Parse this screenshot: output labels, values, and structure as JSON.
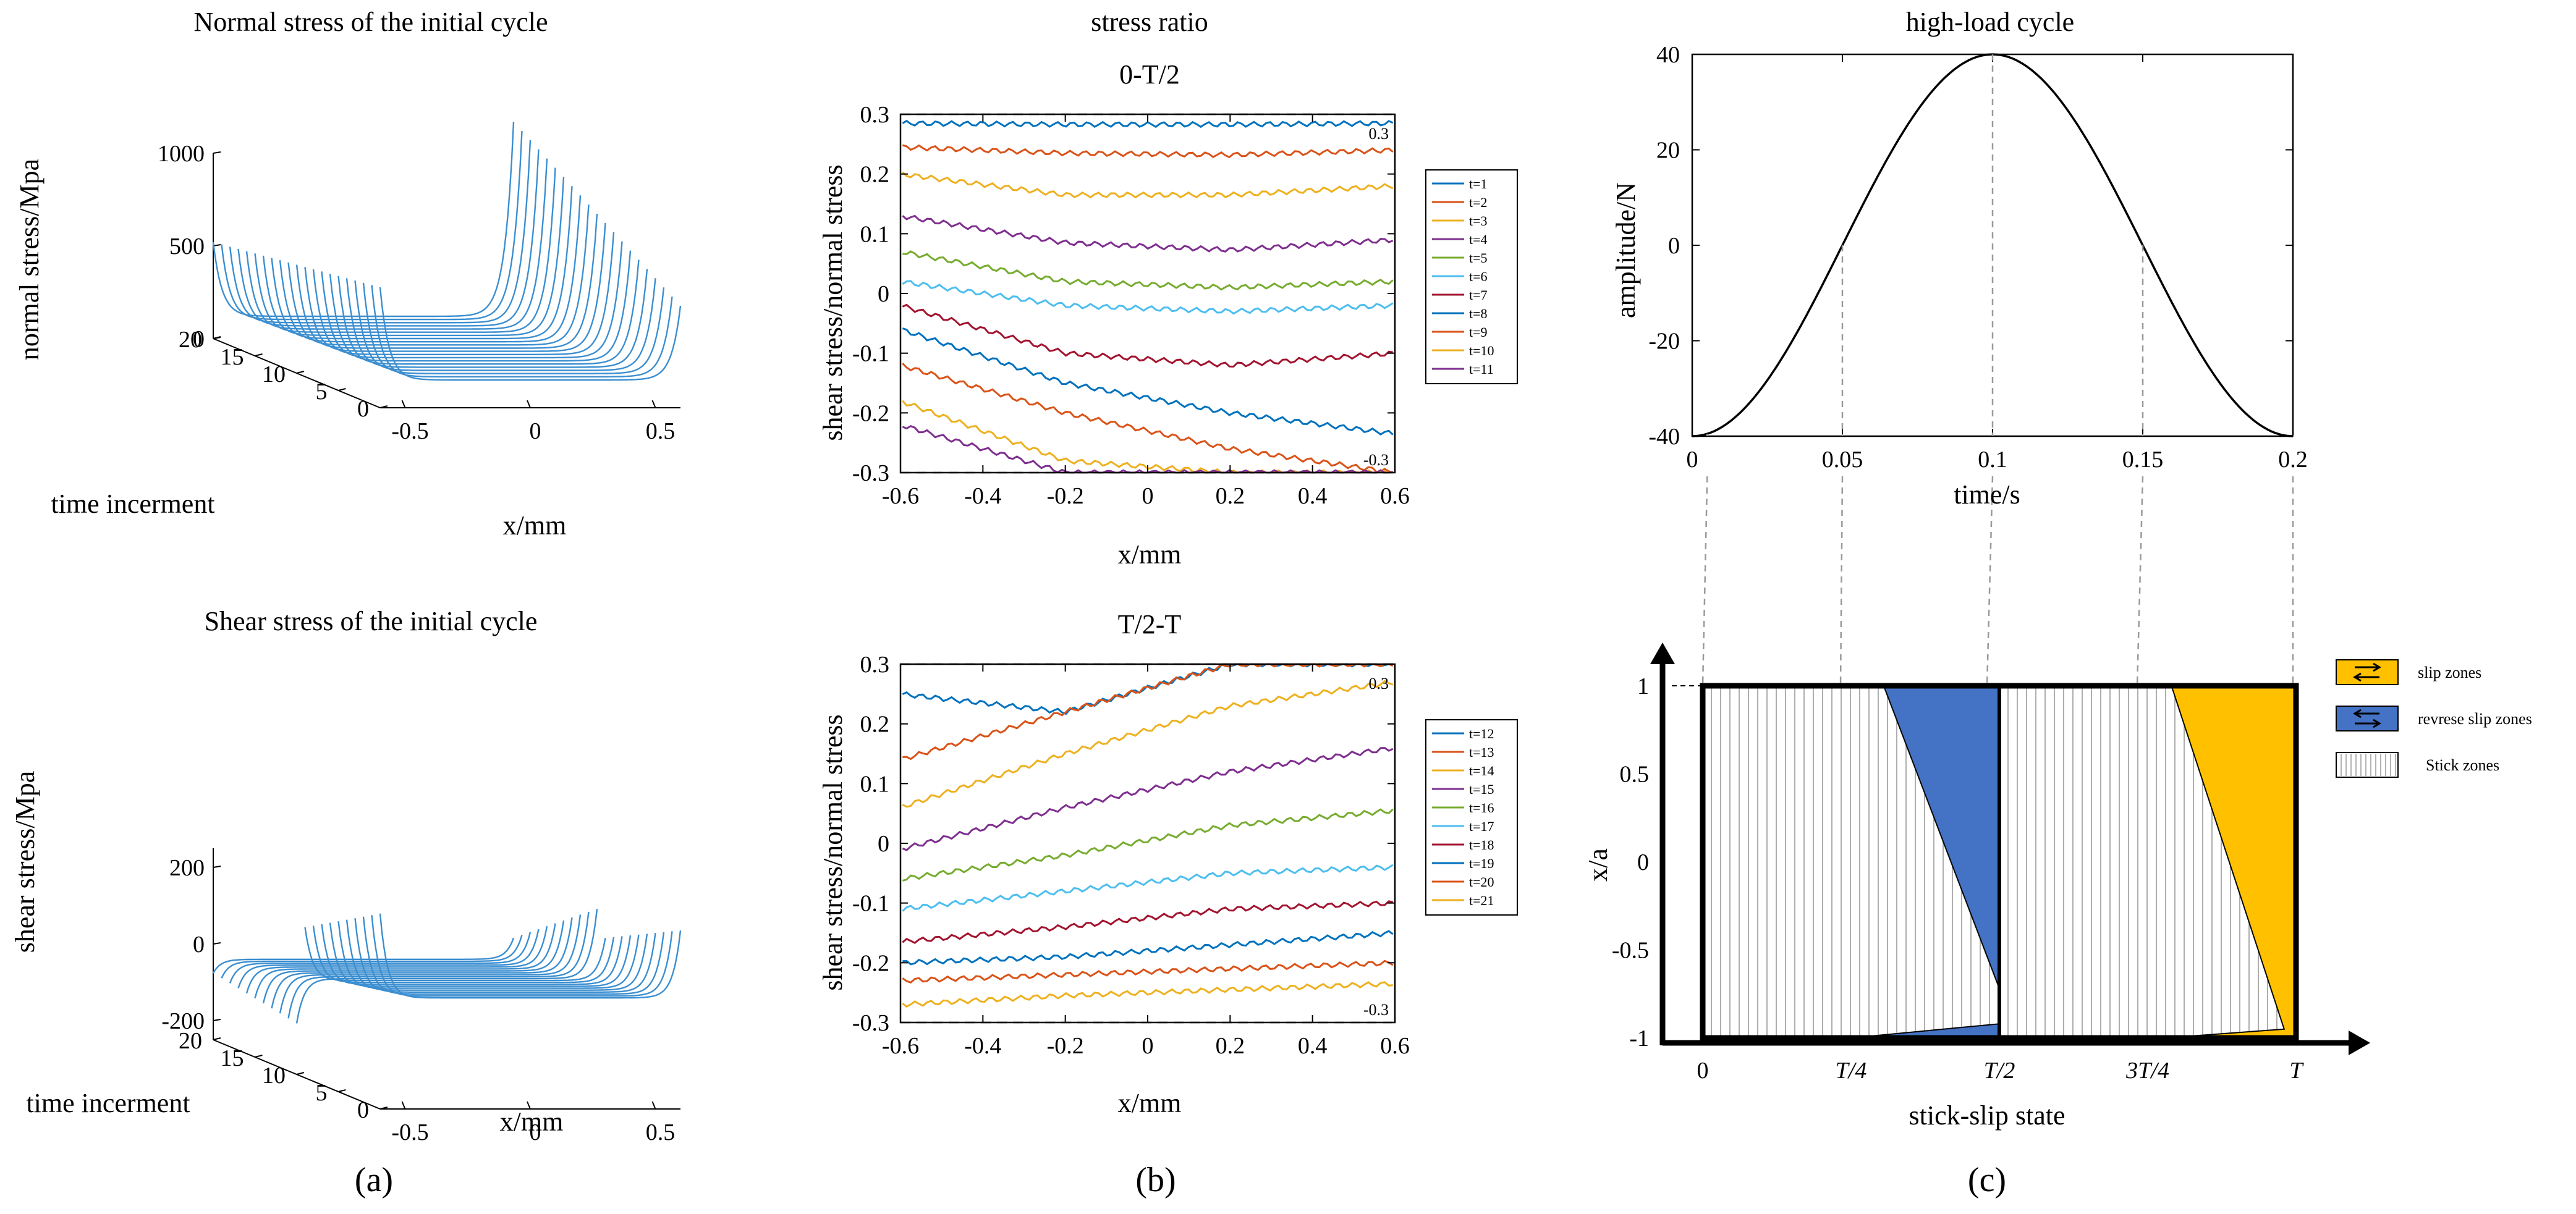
{
  "colors": {
    "ribbon": "#3b8ed0",
    "slip": "#ffc000",
    "reverse_slip": "#4472c4",
    "axis": "#000000",
    "dash": "#9a9a9a",
    "series": [
      "#0072BD",
      "#D95319",
      "#EDB120",
      "#7E2F8E",
      "#77AC30",
      "#4DBEEE",
      "#A2142F",
      "#0072BD",
      "#D95319",
      "#EDB120",
      "#7E2F8E"
    ]
  },
  "captions": {
    "a": "(a)",
    "b": "(b)",
    "c": "(c)"
  },
  "chart_data": [
    {
      "id": "normal-stress-3d",
      "type": "line",
      "title": "Normal stress of the initial cycle",
      "xlabel": "x/mm",
      "ylabel": "time incerment",
      "zlabel": "normal stress/Mpa",
      "x_ticks": [
        "-0.5",
        "0",
        "0.5"
      ],
      "y_ticks": [
        "0",
        "5",
        "10",
        "15",
        "20"
      ],
      "z_ticks": [
        "0",
        "500",
        "1000"
      ],
      "xlim": [
        -0.6,
        0.6
      ],
      "ylim": [
        0,
        20
      ],
      "zlim": [
        0,
        1000
      ],
      "series_count": 21,
      "edge_peak_left_range": [
        500,
        400
      ],
      "edge_peak_right_range": [
        400,
        1050
      ],
      "plateau_range": [
        150,
        120
      ]
    },
    {
      "id": "shear-stress-3d",
      "type": "line",
      "title": "Shear stress of the initial cycle",
      "xlabel": "x/mm",
      "ylabel": "time incerment",
      "zlabel": "shear stress/Mpa",
      "x_ticks": [
        "-0.5",
        "0",
        "0.5"
      ],
      "y_ticks": [
        "0",
        "5",
        "10",
        "15",
        "20"
      ],
      "z_ticks": [
        "-200",
        "0",
        "200"
      ],
      "xlim": [
        -0.6,
        0.6
      ],
      "ylim": [
        0,
        20
      ],
      "zlim": [
        -250,
        250
      ],
      "series_count": 21,
      "plateau_start": 40,
      "plateau_end": -40
    },
    {
      "id": "stress-ratio-0-T2",
      "type": "line",
      "section_title": "stress ratio",
      "title": "0-T/2",
      "xlabel": "x/mm",
      "ylabel": "shear stress/normal stress",
      "xlim": [
        -0.6,
        0.6
      ],
      "ylim": [
        -0.3,
        0.3
      ],
      "x_ticks": [
        "-0.6",
        "-0.4",
        "-0.2",
        "0",
        "0.2",
        "0.4",
        "0.6"
      ],
      "y_ticks": [
        "-0.3",
        "-0.2",
        "-0.1",
        "0",
        "0.1",
        "0.2",
        "0.3"
      ],
      "bound_labels": [
        "0.3",
        "-0.3"
      ],
      "series": [
        {
          "name": "t=1",
          "values": [
            0.285,
            0.283,
            0.283,
            0.285
          ]
        },
        {
          "name": "t=2",
          "values": [
            0.245,
            0.235,
            0.232,
            0.24
          ]
        },
        {
          "name": "t=3",
          "values": [
            0.2,
            0.165,
            0.165,
            0.18
          ]
        },
        {
          "name": "t=4",
          "values": [
            0.13,
            0.085,
            0.073,
            0.09
          ]
        },
        {
          "name": "t=5",
          "values": [
            0.07,
            0.02,
            0.01,
            0.02
          ]
        },
        {
          "name": "t=6",
          "values": [
            0.02,
            -0.02,
            -0.03,
            -0.02
          ]
        },
        {
          "name": "t=7",
          "values": [
            -0.02,
            -0.1,
            -0.12,
            -0.1
          ]
        },
        {
          "name": "t=8",
          "values": [
            -0.06,
            -0.15,
            -0.2,
            -0.235
          ]
        },
        {
          "name": "t=9",
          "values": [
            -0.12,
            -0.2,
            -0.26,
            -0.3
          ]
        },
        {
          "name": "t=10",
          "values": [
            -0.18,
            -0.28,
            -0.3,
            -0.3
          ]
        },
        {
          "name": "t=11",
          "values": [
            -0.22,
            -0.3,
            -0.3,
            -0.3
          ]
        }
      ]
    },
    {
      "id": "stress-ratio-T2-T",
      "type": "line",
      "title": "T/2-T",
      "xlabel": "x/mm",
      "ylabel": "shear stress/normal stress",
      "xlim": [
        -0.6,
        0.6
      ],
      "ylim": [
        -0.3,
        0.3
      ],
      "x_ticks": [
        "-0.6",
        "-0.4",
        "-0.2",
        "0",
        "0.2",
        "0.4",
        "0.6"
      ],
      "y_ticks": [
        "-0.3",
        "-0.2",
        "-0.1",
        "0",
        "0.1",
        "0.2",
        "0.3"
      ],
      "bound_labels": [
        "0.3",
        "-0.3"
      ],
      "series": [
        {
          "name": "t=12",
          "values": [
            0.25,
            0.22,
            0.3,
            0.3
          ]
        },
        {
          "name": "t=13",
          "values": [
            0.14,
            0.22,
            0.3,
            0.3
          ]
        },
        {
          "name": "t=14",
          "values": [
            0.06,
            0.15,
            0.23,
            0.27
          ]
        },
        {
          "name": "t=15",
          "values": [
            -0.01,
            0.06,
            0.12,
            0.16
          ]
        },
        {
          "name": "t=16",
          "values": [
            -0.06,
            -0.02,
            0.03,
            0.055
          ]
        },
        {
          "name": "t=17",
          "values": [
            -0.11,
            -0.08,
            -0.05,
            -0.04
          ]
        },
        {
          "name": "t=18",
          "values": [
            -0.165,
            -0.14,
            -0.11,
            -0.1
          ]
        },
        {
          "name": "t=19",
          "values": [
            -0.2,
            -0.19,
            -0.17,
            -0.15
          ]
        },
        {
          "name": "t=20",
          "values": [
            -0.23,
            -0.22,
            -0.21,
            -0.2
          ]
        },
        {
          "name": "t=21",
          "values": [
            -0.27,
            -0.255,
            -0.245,
            -0.235
          ]
        }
      ]
    },
    {
      "id": "high-load-cycle",
      "type": "line",
      "title": "high-load cycle",
      "xlabel": "time/s",
      "ylabel": "amplitude/N",
      "xlim": [
        0,
        0.2
      ],
      "ylim": [
        -40,
        40
      ],
      "x_ticks": [
        "0",
        "0.05",
        "0.1",
        "0.15",
        "0.2"
      ],
      "y_ticks": [
        "-40",
        "-20",
        "0",
        "20",
        "40"
      ],
      "function": "-40*cos(2*pi*t/0.2)"
    },
    {
      "id": "stick-slip-state",
      "type": "area",
      "xlabel": "stick-slip state",
      "ylabel": "x/a",
      "x_ticks": [
        "0",
        "T/4",
        "T/2",
        "3T/4",
        "T"
      ],
      "y_ticks": [
        "-1",
        "-0.5",
        "0",
        "0.5",
        "1"
      ],
      "legend": [
        {
          "key": "slip",
          "label": "slip zones"
        },
        {
          "key": "reverse",
          "label": "revrese slip zones"
        },
        {
          "key": "stick",
          "label": "Stick zones"
        }
      ]
    }
  ]
}
